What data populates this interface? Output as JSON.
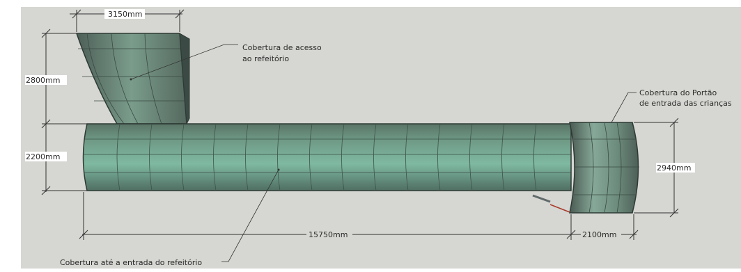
{
  "dimensions": {
    "top_width": "3150mm",
    "access_height": "2800mm",
    "corridor_height": "2200mm",
    "gate_height": "2940mm",
    "total_length": "15750mm",
    "gate_length": "2100mm"
  },
  "annotations": {
    "access_cover": {
      "line1": "Cobertura de acesso",
      "line2": "ao refeitório"
    },
    "gate_cover": {
      "line1": "Cobertura do Portão",
      "line2": "de entrada das crianças"
    },
    "corridor_cover": "Cobertura até a entrada do refeitório"
  }
}
